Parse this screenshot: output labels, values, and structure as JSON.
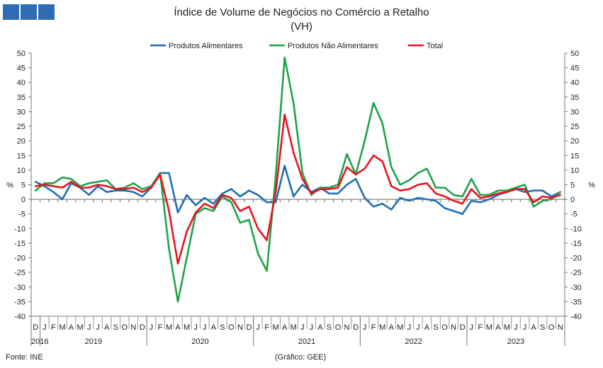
{
  "chart_data": {
    "type": "line",
    "title": "Índice de Volume de Negócios no Comércio a Retalho",
    "subtitle": "(VH)",
    "ylabel": "%",
    "ylabel_right": "%",
    "ylim": [
      -40,
      50
    ],
    "yticks": [
      -40,
      -35,
      -30,
      -25,
      -20,
      -15,
      -10,
      -5,
      0,
      5,
      10,
      15,
      20,
      25,
      30,
      35,
      40,
      45,
      50
    ],
    "legend_position": "top",
    "grid": false,
    "categories": [
      "D",
      "J",
      "F",
      "M",
      "A",
      "M",
      "J",
      "J",
      "A",
      "S",
      "O",
      "N",
      "D",
      "J",
      "F",
      "M",
      "A",
      "M",
      "J",
      "J",
      "A",
      "S",
      "O",
      "N",
      "D",
      "J",
      "F",
      "M",
      "A",
      "M",
      "J",
      "J",
      "A",
      "S",
      "O",
      "N",
      "D",
      "J",
      "F",
      "M",
      "A",
      "M",
      "J",
      "J",
      "A",
      "S",
      "O",
      "N",
      "D",
      "J",
      "F",
      "M",
      "A",
      "M",
      "J",
      "J",
      "A",
      "S",
      "O",
      "N"
    ],
    "years": [
      {
        "label": "2016",
        "start": 0,
        "end": 0
      },
      {
        "label": "2019",
        "start": 1,
        "end": 12
      },
      {
        "label": "2020",
        "start": 13,
        "end": 24
      },
      {
        "label": "2021",
        "start": 25,
        "end": 36
      },
      {
        "label": "2022",
        "start": 37,
        "end": 48
      },
      {
        "label": "2023",
        "start": 49,
        "end": 59
      }
    ],
    "series": [
      {
        "name": "Produtos Alimentares",
        "color": "#1f6fb5",
        "values": [
          6,
          4.5,
          2.5,
          0,
          5.5,
          4,
          1.5,
          4.5,
          2.5,
          3,
          3,
          2.5,
          1,
          4,
          9,
          9,
          -4.5,
          1.5,
          -2,
          0.5,
          -1.5,
          2,
          3.5,
          1,
          3,
          1.5,
          -1,
          -1,
          11.5,
          1,
          5,
          2.5,
          4,
          2,
          2,
          5,
          7,
          0.5,
          -2.5,
          -1.5,
          -3.5,
          0.5,
          -0.5,
          0.5,
          0,
          -0.5,
          -3,
          -4,
          -5,
          -0.5,
          -1,
          0,
          1.5,
          2.5,
          3.5,
          2.5,
          3,
          3,
          1,
          2.5
        ]
      },
      {
        "name": "Produtos Não Alimentares",
        "color": "#1fa34a",
        "values": [
          3,
          5.5,
          5.5,
          7.5,
          7,
          4.5,
          5.5,
          6,
          6.5,
          3.5,
          4,
          5.5,
          3.5,
          4.5,
          9,
          -17,
          -35,
          -20,
          -5,
          -3,
          -4,
          1,
          -1,
          -8,
          -7,
          -18.5,
          -24.5,
          8,
          48.5,
          33,
          9,
          1.5,
          4,
          4,
          5,
          15.5,
          8.5,
          20,
          33,
          26,
          11,
          5,
          6.5,
          9,
          10.5,
          4,
          4,
          1.5,
          1,
          7,
          1.5,
          1.5,
          3,
          3,
          4,
          5,
          -2.5,
          -0.5,
          0,
          2.5
        ]
      },
      {
        "name": "Total",
        "color": "#e8141e",
        "values": [
          4.5,
          5,
          4.5,
          4,
          6,
          4,
          4,
          5,
          4.5,
          3.5,
          3.5,
          4,
          2.5,
          4,
          8.5,
          -4,
          -22,
          -11,
          -4.5,
          -1.5,
          -3,
          1.5,
          0.5,
          -4,
          -2.5,
          -10,
          -14,
          2.5,
          29,
          16,
          7,
          2,
          3.5,
          3.5,
          4,
          11,
          8.5,
          10.5,
          15,
          13,
          4.5,
          3,
          3.5,
          5,
          5.5,
          2,
          1,
          -0.5,
          -1.5,
          3.5,
          0.5,
          1,
          2,
          2.5,
          3.5,
          3.5,
          -1,
          1,
          0.5,
          1.5
        ]
      }
    ]
  },
  "footer": {
    "source": "Fonte: INE",
    "credit": "(Gráfico: GEE)"
  }
}
